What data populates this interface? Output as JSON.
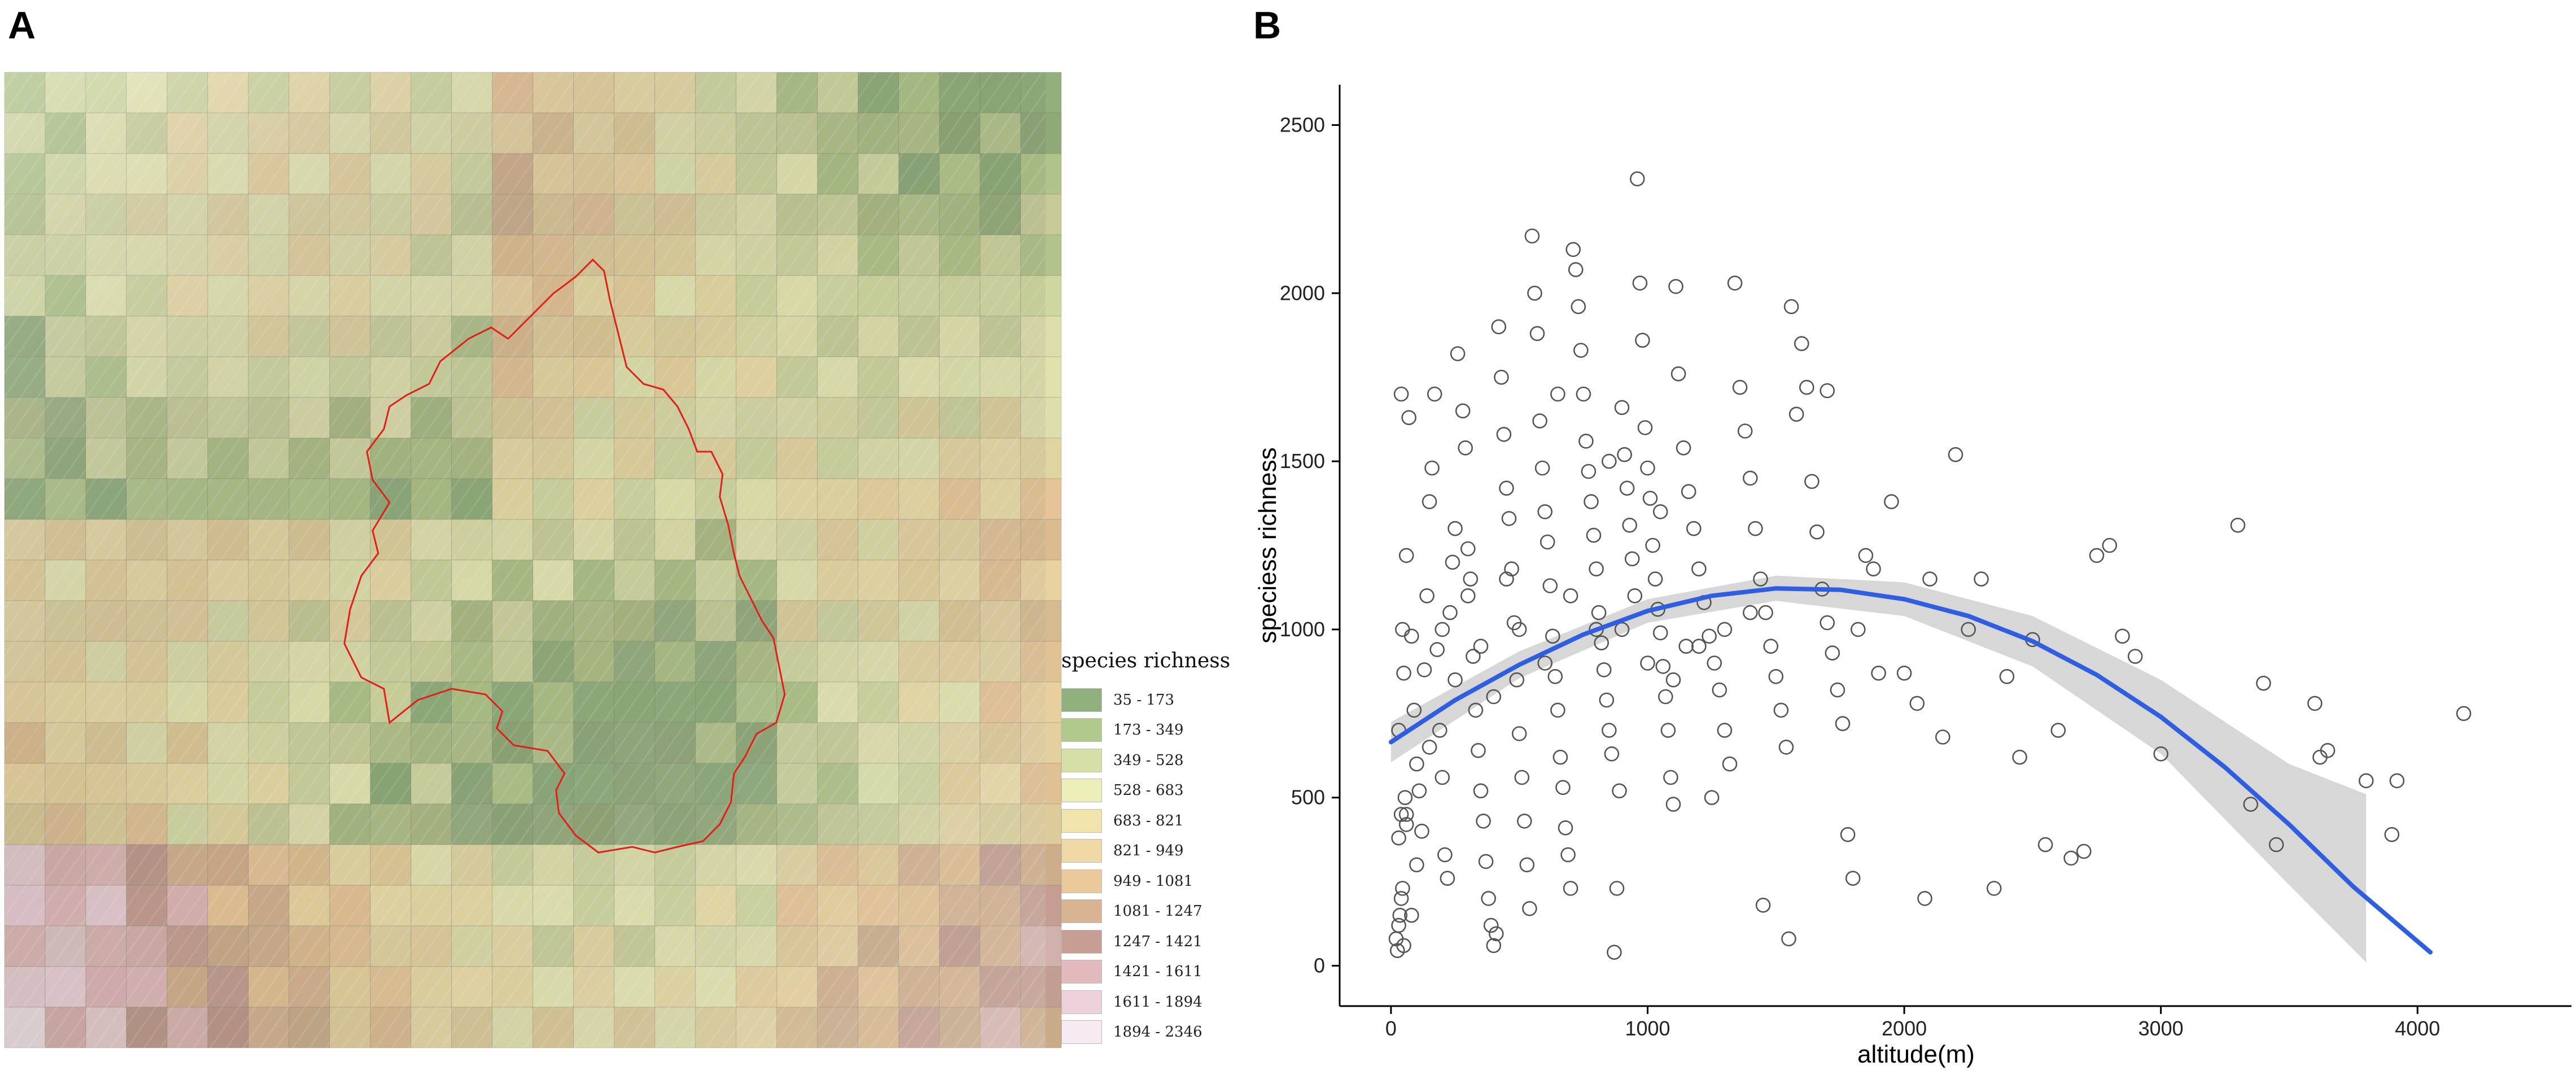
{
  "panels": {
    "a_label": "A",
    "b_label": "B"
  },
  "legend": {
    "title": "species richness",
    "classes": [
      {
        "label": "35 - 173",
        "color": "#8fb07c"
      },
      {
        "label": "173 - 349",
        "color": "#b2c98c"
      },
      {
        "label": "349 - 528",
        "color": "#d6dfa6"
      },
      {
        "label": "528 - 683",
        "color": "#ecefb8"
      },
      {
        "label": "683 - 821",
        "color": "#f1e3ac"
      },
      {
        "label": "821 - 949",
        "color": "#f0d9a4"
      },
      {
        "label": "949 - 1081",
        "color": "#ecc99a"
      },
      {
        "label": "1081 - 1247",
        "color": "#d9b493"
      },
      {
        "label": "1247 - 1421",
        "color": "#c79d94"
      },
      {
        "label": "1421 - 1611",
        "color": "#e2babd"
      },
      {
        "label": "1611 - 1894",
        "color": "#eed2db"
      },
      {
        "label": "1894 - 2346",
        "color": "#f8eaf3"
      }
    ]
  },
  "chart_data": {
    "type": "scatter",
    "xlabel": "altitude(m)",
    "ylabel": "speciess richness",
    "xlim": [
      -200,
      4600
    ],
    "ylim": [
      -120,
      2620
    ],
    "x_ticks": [
      0,
      1000,
      2000,
      3000,
      4000
    ],
    "y_ticks": [
      0,
      500,
      1000,
      1500,
      2000,
      2500
    ],
    "grid": false,
    "point_color": "#555555",
    "fit_color": "#2f5fe0",
    "ci_color": "#d3d3d3",
    "fit_curve": {
      "x": [
        0,
        250,
        500,
        750,
        1000,
        1250,
        1500,
        1750,
        2000,
        2250,
        2500,
        2750,
        3000,
        3250,
        3500,
        3750,
        4050
      ],
      "y": [
        665,
        790,
        895,
        985,
        1055,
        1100,
        1122,
        1118,
        1090,
        1040,
        965,
        865,
        740,
        590,
        420,
        235,
        40
      ]
    },
    "ci_band": {
      "x": [
        0,
        500,
        1000,
        1500,
        2000,
        2500,
        3000,
        3500,
        3800
      ],
      "upper": [
        725,
        935,
        1090,
        1160,
        1140,
        1040,
        850,
        600,
        510
      ],
      "lower": [
        605,
        855,
        1020,
        1085,
        1040,
        890,
        630,
        240,
        10
      ]
    },
    "points": [
      [
        20,
        80
      ],
      [
        30,
        120
      ],
      [
        40,
        200
      ],
      [
        25,
        45
      ],
      [
        50,
        60
      ],
      [
        35,
        150
      ],
      [
        45,
        230
      ],
      [
        30,
        380
      ],
      [
        40,
        450
      ],
      [
        55,
        500
      ],
      [
        60,
        420
      ],
      [
        30,
        700
      ],
      [
        50,
        870
      ],
      [
        45,
        1000
      ],
      [
        60,
        1220
      ],
      [
        40,
        1700
      ],
      [
        70,
        1630
      ],
      [
        80,
        980
      ],
      [
        90,
        760
      ],
      [
        100,
        600
      ],
      [
        110,
        520
      ],
      [
        120,
        400
      ],
      [
        130,
        880
      ],
      [
        140,
        1100
      ],
      [
        150,
        1380
      ],
      [
        160,
        1480
      ],
      [
        170,
        1700
      ],
      [
        180,
        940
      ],
      [
        190,
        700
      ],
      [
        200,
        560
      ],
      [
        210,
        330
      ],
      [
        220,
        260
      ],
      [
        230,
        1050
      ],
      [
        240,
        1200
      ],
      [
        250,
        1300
      ],
      [
        260,
        1820
      ],
      [
        280,
        1650
      ],
      [
        290,
        1540
      ],
      [
        300,
        1240
      ],
      [
        310,
        1150
      ],
      [
        320,
        920
      ],
      [
        330,
        760
      ],
      [
        340,
        640
      ],
      [
        350,
        520
      ],
      [
        360,
        430
      ],
      [
        370,
        310
      ],
      [
        380,
        200
      ],
      [
        390,
        120
      ],
      [
        400,
        60
      ],
      [
        410,
        95
      ],
      [
        420,
        1900
      ],
      [
        430,
        1750
      ],
      [
        440,
        1580
      ],
      [
        450,
        1420
      ],
      [
        460,
        1330
      ],
      [
        470,
        1180
      ],
      [
        480,
        1020
      ],
      [
        490,
        850
      ],
      [
        500,
        690
      ],
      [
        510,
        560
      ],
      [
        520,
        430
      ],
      [
        530,
        300
      ],
      [
        540,
        170
      ],
      [
        550,
        2170
      ],
      [
        560,
        2000
      ],
      [
        570,
        1880
      ],
      [
        580,
        1620
      ],
      [
        590,
        1480
      ],
      [
        600,
        1350
      ],
      [
        610,
        1260
      ],
      [
        620,
        1130
      ],
      [
        630,
        980
      ],
      [
        640,
        860
      ],
      [
        650,
        760
      ],
      [
        660,
        620
      ],
      [
        670,
        530
      ],
      [
        680,
        410
      ],
      [
        690,
        330
      ],
      [
        700,
        230
      ],
      [
        710,
        2130
      ],
      [
        720,
        2070
      ],
      [
        730,
        1960
      ],
      [
        740,
        1830
      ],
      [
        750,
        1700
      ],
      [
        760,
        1560
      ],
      [
        770,
        1470
      ],
      [
        780,
        1380
      ],
      [
        790,
        1280
      ],
      [
        800,
        1180
      ],
      [
        810,
        1050
      ],
      [
        820,
        960
      ],
      [
        830,
        880
      ],
      [
        840,
        790
      ],
      [
        850,
        700
      ],
      [
        860,
        630
      ],
      [
        870,
        40
      ],
      [
        880,
        230
      ],
      [
        890,
        520
      ],
      [
        900,
        1660
      ],
      [
        910,
        1520
      ],
      [
        920,
        1420
      ],
      [
        930,
        1310
      ],
      [
        940,
        1210
      ],
      [
        950,
        1100
      ],
      [
        960,
        2340
      ],
      [
        970,
        2030
      ],
      [
        980,
        1860
      ],
      [
        990,
        1600
      ],
      [
        1000,
        1480
      ],
      [
        1010,
        1390
      ],
      [
        1020,
        1250
      ],
      [
        1030,
        1150
      ],
      [
        1040,
        1060
      ],
      [
        1050,
        990
      ],
      [
        1060,
        890
      ],
      [
        1070,
        800
      ],
      [
        1080,
        700
      ],
      [
        1090,
        560
      ],
      [
        1100,
        480
      ],
      [
        1110,
        2020
      ],
      [
        1120,
        1760
      ],
      [
        1140,
        1540
      ],
      [
        1160,
        1410
      ],
      [
        1180,
        1300
      ],
      [
        1200,
        1180
      ],
      [
        1220,
        1080
      ],
      [
        1240,
        980
      ],
      [
        1260,
        900
      ],
      [
        1280,
        820
      ],
      [
        1300,
        700
      ],
      [
        1320,
        600
      ],
      [
        1340,
        2030
      ],
      [
        1360,
        1720
      ],
      [
        1380,
        1590
      ],
      [
        1400,
        1450
      ],
      [
        1420,
        1300
      ],
      [
        1440,
        1150
      ],
      [
        1460,
        1050
      ],
      [
        1480,
        950
      ],
      [
        1500,
        860
      ],
      [
        1520,
        760
      ],
      [
        1540,
        650
      ],
      [
        1560,
        1960
      ],
      [
        1580,
        1640
      ],
      [
        1600,
        1850
      ],
      [
        1620,
        1720
      ],
      [
        1640,
        1440
      ],
      [
        1660,
        1290
      ],
      [
        1680,
        1120
      ],
      [
        1700,
        1020
      ],
      [
        1720,
        930
      ],
      [
        1740,
        820
      ],
      [
        1760,
        720
      ],
      [
        1780,
        390
      ],
      [
        1800,
        260
      ],
      [
        1820,
        1000
      ],
      [
        1850,
        1220
      ],
      [
        1880,
        1180
      ],
      [
        1900,
        870
      ],
      [
        1950,
        1380
      ],
      [
        2000,
        870
      ],
      [
        2050,
        780
      ],
      [
        2100,
        1150
      ],
      [
        2150,
        680
      ],
      [
        2200,
        1520
      ],
      [
        2250,
        1000
      ],
      [
        2300,
        1150
      ],
      [
        2350,
        230
      ],
      [
        2400,
        860
      ],
      [
        2450,
        620
      ],
      [
        2500,
        970
      ],
      [
        2550,
        360
      ],
      [
        2600,
        700
      ],
      [
        2650,
        320
      ],
      [
        2700,
        340
      ],
      [
        2750,
        1220
      ],
      [
        2800,
        1250
      ],
      [
        2850,
        980
      ],
      [
        2900,
        920
      ],
      [
        3000,
        630
      ],
      [
        3300,
        1310
      ],
      [
        3350,
        480
      ],
      [
        3400,
        840
      ],
      [
        3450,
        360
      ],
      [
        3600,
        780
      ],
      [
        3620,
        620
      ],
      [
        3650,
        640
      ],
      [
        3800,
        550
      ],
      [
        3900,
        390
      ],
      [
        3920,
        550
      ],
      [
        4180,
        750
      ],
      [
        1150,
        950
      ],
      [
        1250,
        500
      ],
      [
        1450,
        180
      ],
      [
        1550,
        80
      ],
      [
        2080,
        200
      ],
      [
        1700,
        1710
      ],
      [
        1050,
        1350
      ],
      [
        850,
        1500
      ],
      [
        650,
        1700
      ],
      [
        450,
        1150
      ],
      [
        350,
        950
      ],
      [
        250,
        850
      ],
      [
        150,
        650
      ],
      [
        100,
        300
      ],
      [
        80,
        150
      ],
      [
        60,
        450
      ],
      [
        200,
        1000
      ],
      [
        300,
        1100
      ],
      [
        400,
        800
      ],
      [
        500,
        1000
      ],
      [
        600,
        900
      ],
      [
        700,
        1100
      ],
      [
        800,
        1000
      ],
      [
        900,
        1000
      ],
      [
        1000,
        900
      ],
      [
        1100,
        850
      ],
      [
        1200,
        950
      ],
      [
        1300,
        1000
      ],
      [
        1400,
        1050
      ]
    ]
  }
}
